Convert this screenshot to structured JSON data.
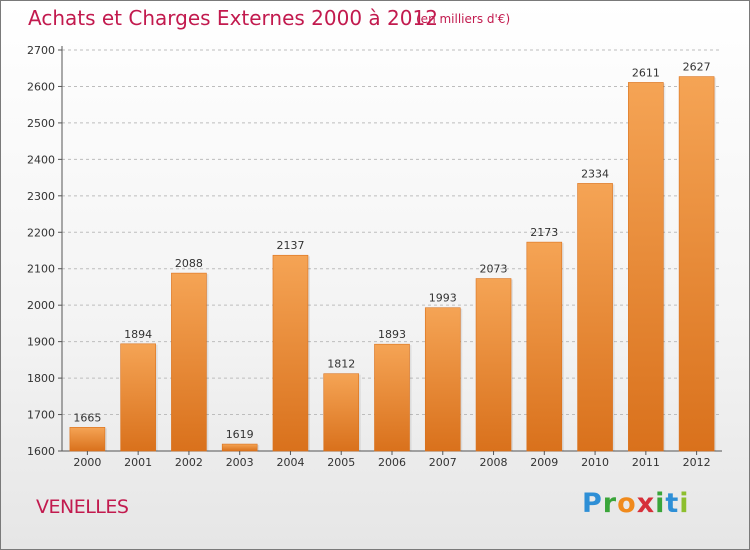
{
  "title": "Achats et Charges Externes 2000 à 2012",
  "unit_note": "(en milliers d'€)",
  "location": "VENELLES",
  "brand": {
    "letters": [
      "P",
      "r",
      "o",
      "x",
      "i",
      "t",
      "i"
    ],
    "colors": [
      "#2e8fd6",
      "#3aa53a",
      "#f08a1c",
      "#d6303a",
      "#3aa53a",
      "#2e8fd6",
      "#8dbf2e"
    ]
  },
  "colors": {
    "bar": "#ee8a32",
    "bar_light": "#f5a455",
    "bar_dark": "#d9711c",
    "axis": "#555555",
    "grid": "#bdbdbd",
    "accent": "#c21a4e"
  },
  "chart_data": {
    "type": "bar",
    "categories": [
      "2000",
      "2001",
      "2002",
      "2003",
      "2004",
      "2005",
      "2006",
      "2007",
      "2008",
      "2009",
      "2010",
      "2011",
      "2012"
    ],
    "values": [
      1665,
      1894,
      2088,
      1619,
      2137,
      1812,
      1893,
      1993,
      2073,
      2173,
      2334,
      2611,
      2627
    ],
    "ylim": [
      1600,
      2700
    ],
    "yticks": [
      1600,
      1700,
      1800,
      1900,
      2000,
      2100,
      2200,
      2300,
      2400,
      2500,
      2600,
      2700
    ],
    "grid": true,
    "xlabel": "",
    "ylabel": ""
  }
}
